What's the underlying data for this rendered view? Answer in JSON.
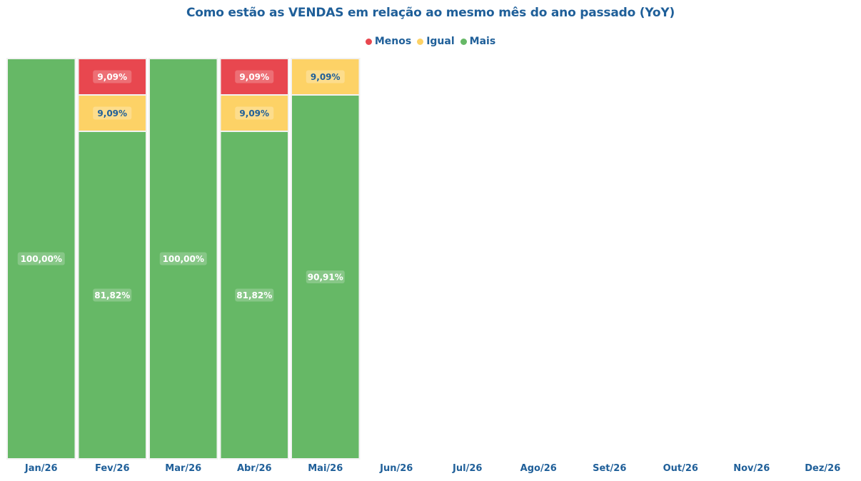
{
  "chart_data": {
    "type": "bar",
    "stacked": true,
    "normalized": true,
    "title": "Como estão as VENDAS em relação ao mesmo mês do ano passado (YoY)",
    "xlabel": "",
    "ylabel": "",
    "ylim": [
      0,
      100
    ],
    "grid": false,
    "legend_position": "top-center",
    "categories": [
      "Jan/26",
      "Fev/26",
      "Mar/26",
      "Abr/26",
      "Mai/26",
      "Jun/26",
      "Jul/26",
      "Ago/26",
      "Set/26",
      "Out/26",
      "Nov/26",
      "Dez/26"
    ],
    "series": [
      {
        "name": "Mais",
        "color": "#66b866",
        "values": [
          100.0,
          81.82,
          100.0,
          81.82,
          90.91,
          null,
          null,
          null,
          null,
          null,
          null,
          null
        ],
        "labels": [
          "100,00%",
          "81,82%",
          "100,00%",
          "81,82%",
          "90,91%",
          "",
          "",
          "",
          "",
          "",
          "",
          ""
        ]
      },
      {
        "name": "Igual",
        "color": "#fdd266",
        "values": [
          0,
          9.09,
          0,
          9.09,
          9.09,
          null,
          null,
          null,
          null,
          null,
          null,
          null
        ],
        "labels": [
          "",
          "9,09%",
          "",
          "9,09%",
          "9,09%",
          "",
          "",
          "",
          "",
          "",
          "",
          ""
        ]
      },
      {
        "name": "Menos",
        "color": "#e8474f",
        "values": [
          0,
          9.09,
          0,
          9.09,
          0,
          null,
          null,
          null,
          null,
          null,
          null,
          null
        ],
        "labels": [
          "",
          "9,09%",
          "",
          "9,09%",
          "",
          "",
          "",
          "",
          "",
          "",
          "",
          ""
        ]
      }
    ],
    "legend": [
      {
        "name": "Menos",
        "color": "#e8474f"
      },
      {
        "name": "Igual",
        "color": "#fdd266"
      },
      {
        "name": "Mais",
        "color": "#66b866"
      }
    ]
  }
}
